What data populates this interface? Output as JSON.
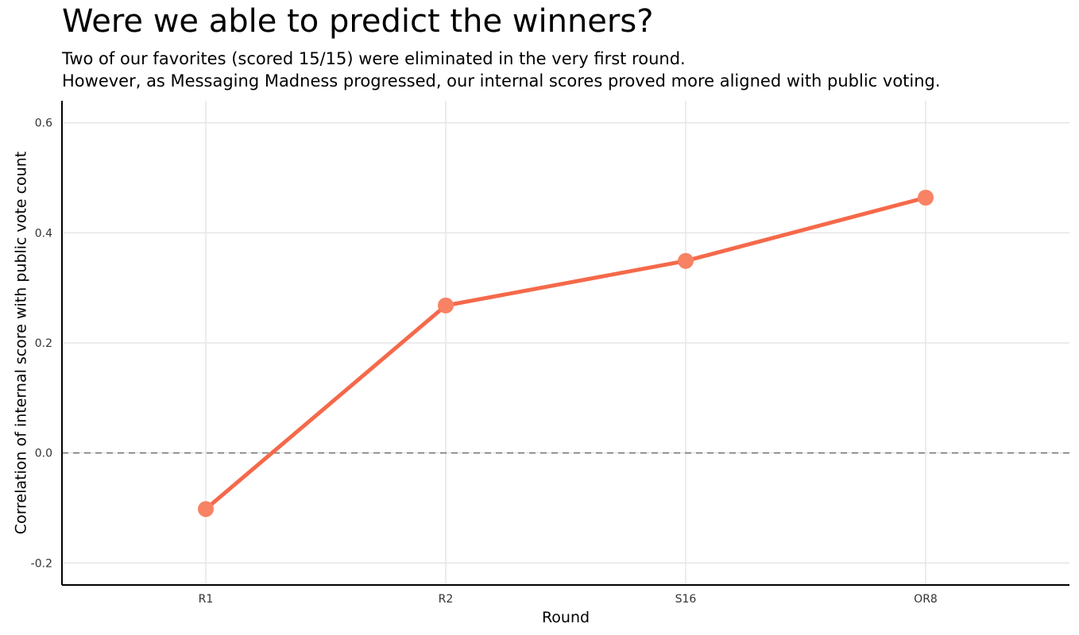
{
  "chart_data": {
    "type": "line",
    "title": "Were we able to predict the winners?",
    "subtitle": [
      "Two of our favorites (scored 15/15) were eliminated in the very first round.",
      "However, as Messaging Madness progressed, our internal scores proved more aligned with public voting."
    ],
    "xlabel": "Round",
    "ylabel": "Correlation of internal score with public vote count",
    "categories": [
      "R1",
      "R2",
      "S16",
      "OR8"
    ],
    "series": [
      {
        "values": [
          -0.102,
          0.268,
          0.349,
          0.464
        ]
      }
    ],
    "ylim": [
      -0.24,
      0.64
    ],
    "yticks": [
      -0.2,
      0.0,
      0.2,
      0.4,
      0.6
    ],
    "ytick_labels": [
      "-0.2",
      "0.0",
      "0.2",
      "0.4",
      "0.6"
    ],
    "reference_line": {
      "y": 0.0,
      "style": "dashed"
    },
    "grid": true,
    "legend": "none",
    "colors": {
      "line": "#f5694a",
      "point": "#f88264",
      "grid": "#e6e6e6",
      "reference": "#7f7f7f"
    }
  }
}
